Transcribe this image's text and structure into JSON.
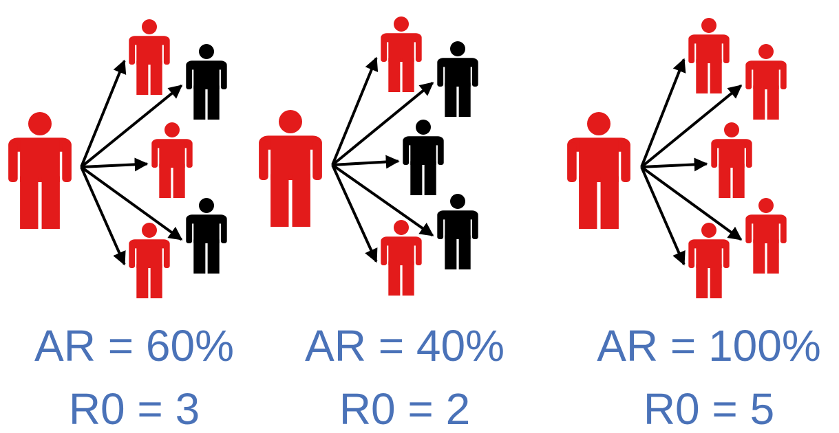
{
  "panels": [
    {
      "ar": "AR = 60%",
      "r0": "R0 = 3"
    },
    {
      "ar": "AR = 40%",
      "r0": "R0 = 2"
    },
    {
      "ar": "AR = 100%",
      "r0": "R0 = 5"
    }
  ]
}
